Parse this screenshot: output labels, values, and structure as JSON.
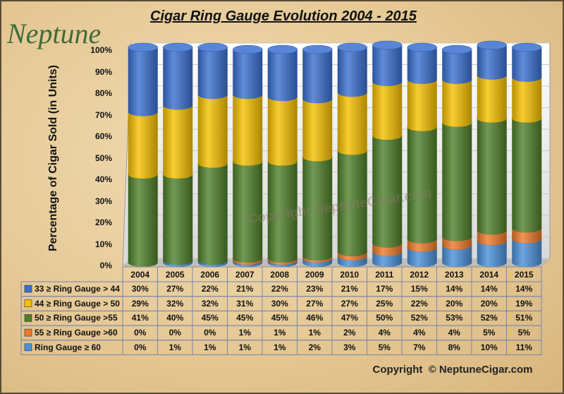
{
  "logo": "Neptune",
  "copyright": "Copyright  © NeptuneCigar.com",
  "watermark": "Copyright NeptuneCigar.com",
  "chart_data": {
    "type": "bar",
    "stacked": true,
    "title": "Cigar Ring Gauge Evolution   2004 - 2015",
    "ylabel": "Percentage of Cigar Sold (in Units)",
    "xlabel": "",
    "ylim": [
      0,
      100
    ],
    "yticks": [
      "0%",
      "10%",
      "20%",
      "30%",
      "40%",
      "50%",
      "60%",
      "70%",
      "80%",
      "90%",
      "100%"
    ],
    "grid": true,
    "legend": "table-below",
    "categories": [
      "2004",
      "2005",
      "2006",
      "2007",
      "2008",
      "2009",
      "2010",
      "2011",
      "2012",
      "2013",
      "2014",
      "2015"
    ],
    "series": [
      {
        "name": "33 ≥ Ring Gauge > 44",
        "color": "#3a6fd0",
        "values": [
          30,
          27,
          22,
          21,
          22,
          23,
          21,
          17,
          15,
          14,
          14,
          14
        ]
      },
      {
        "name": "44 ≥ Ring Gauge > 50",
        "color": "#f5c000",
        "values": [
          29,
          32,
          32,
          31,
          30,
          27,
          27,
          25,
          22,
          20,
          20,
          19
        ]
      },
      {
        "name": "50 ≥ Ring Gauge >55",
        "color": "#4f7f2a",
        "values": [
          41,
          40,
          45,
          45,
          45,
          46,
          47,
          50,
          52,
          53,
          52,
          51
        ]
      },
      {
        "name": "55 ≥ Ring Gauge >60",
        "color": "#ec7a2a",
        "values": [
          0,
          0,
          0,
          1,
          1,
          1,
          2,
          4,
          4,
          4,
          5,
          5
        ]
      },
      {
        "name": "Ring Gauge ≥ 60",
        "color": "#4a90d8",
        "values": [
          0,
          1,
          1,
          1,
          1,
          2,
          3,
          5,
          7,
          8,
          10,
          11
        ]
      }
    ]
  }
}
